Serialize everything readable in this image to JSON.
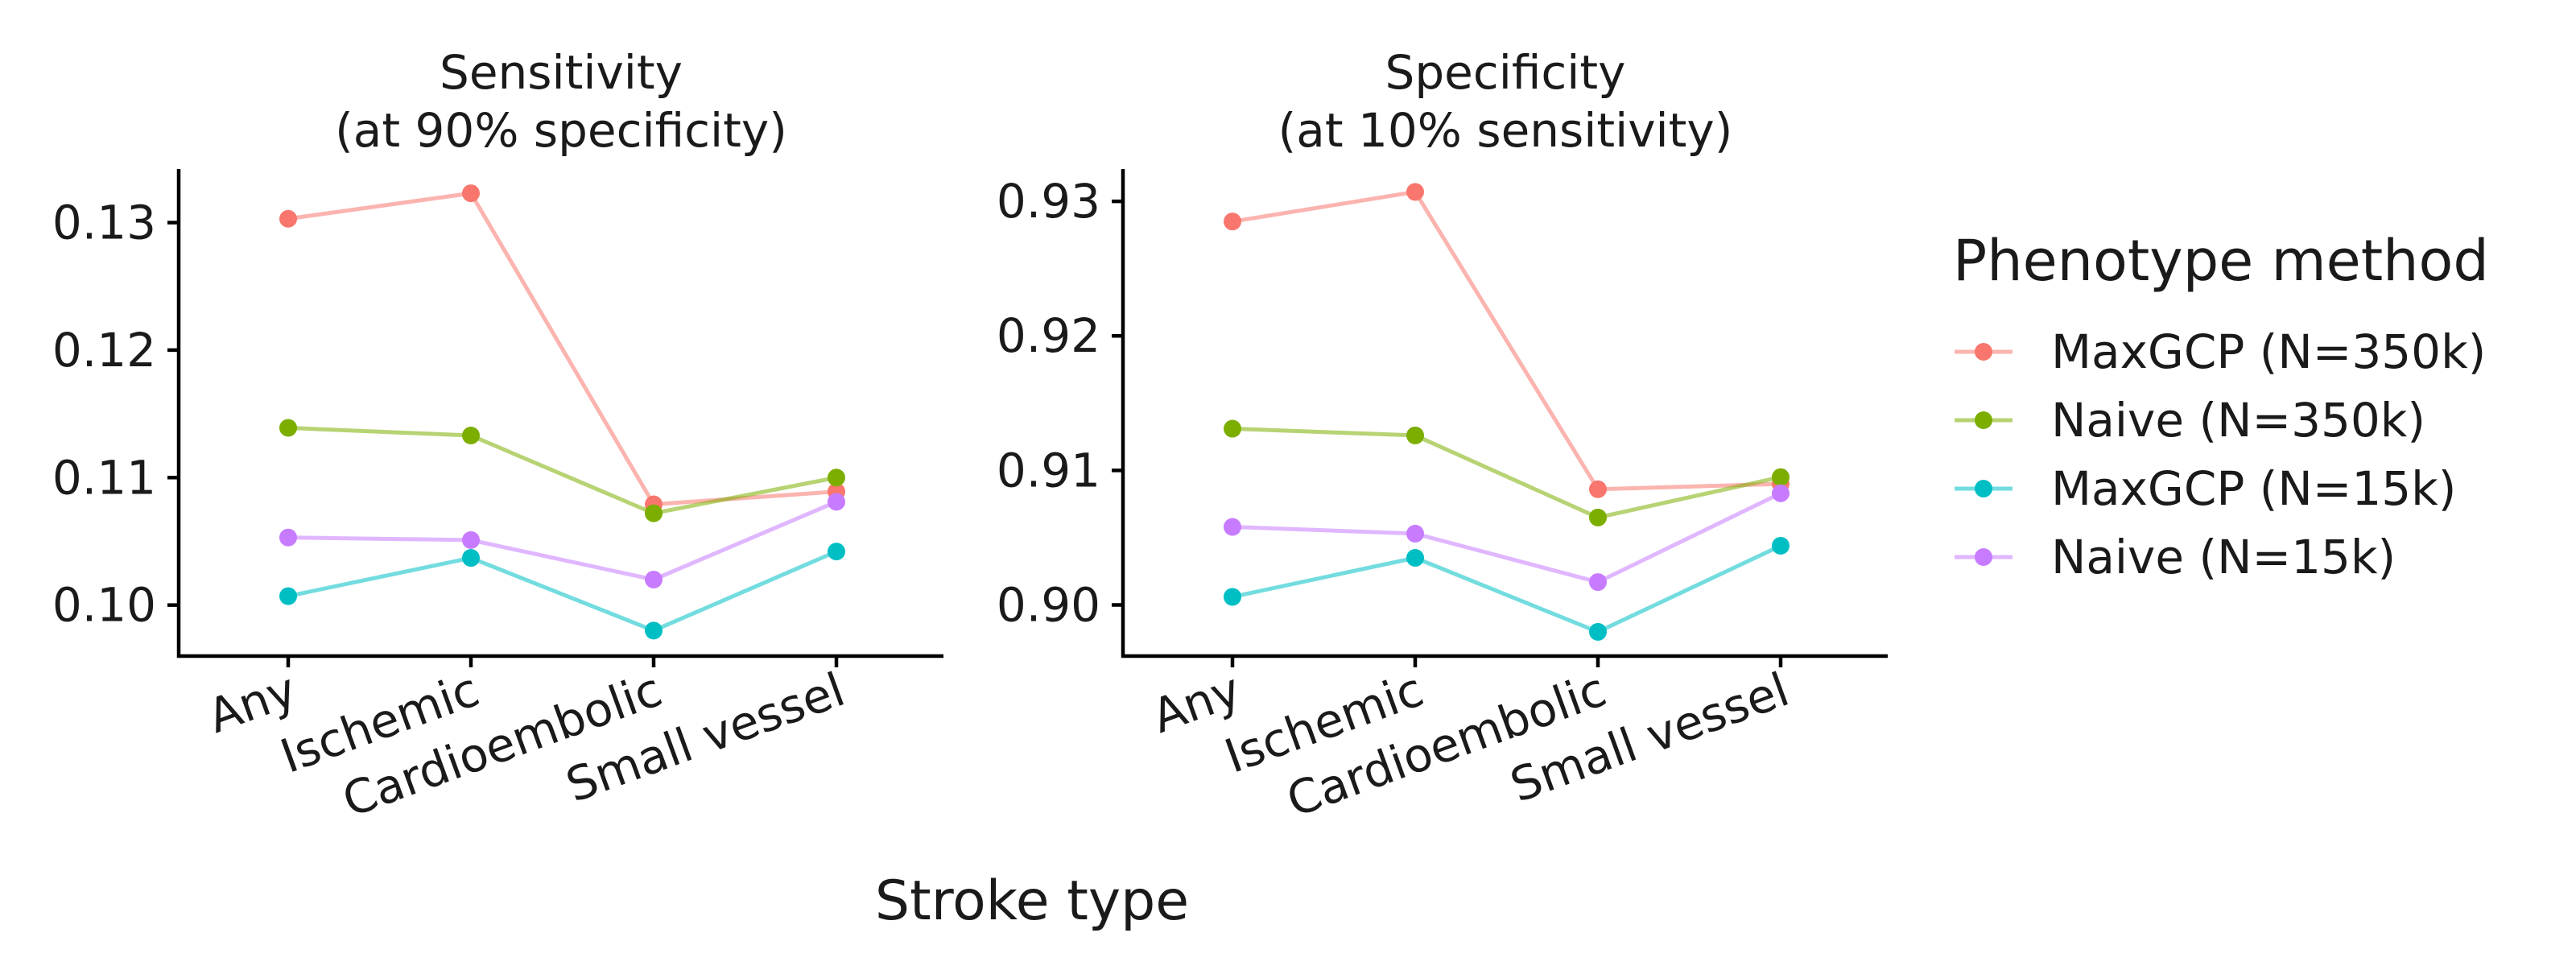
{
  "chart_data": {
    "type": "line",
    "xlabel": "Stroke type",
    "categories": [
      "Any",
      "Ischemic",
      "Cardioembolic",
      "Small vessel"
    ],
    "legend": {
      "title": "Phenotype method",
      "position": "right"
    },
    "grid": false,
    "colors": {
      "MaxGCP (N=350k)": "#F8766D",
      "Naive (N=350k)": "#7CAE00",
      "MaxGCP (N=15k)": "#00BFC4",
      "Naive (N=15k)": "#C77CFF"
    },
    "panels": [
      {
        "title_line1": "Sensitivity",
        "title_line2": "(at 90% specificity)",
        "ylim": [
          0.096,
          0.1342
        ],
        "yticks": [
          0.1,
          0.11,
          0.12,
          0.13
        ],
        "ytick_labels": [
          "0.10",
          "0.11",
          "0.12",
          "0.13"
        ],
        "series": [
          {
            "name": "MaxGCP (N=350k)",
            "values": [
              0.1303,
              0.1323,
              0.1079,
              0.1089
            ]
          },
          {
            "name": "Naive (N=350k)",
            "values": [
              0.1139,
              0.1133,
              0.1072,
              0.11
            ]
          },
          {
            "name": "MaxGCP (N=15k)",
            "values": [
              0.1007,
              0.1037,
              0.098,
              0.1042
            ]
          },
          {
            "name": "Naive (N=15k)",
            "values": [
              0.1053,
              0.1051,
              0.102,
              0.1081
            ]
          }
        ]
      },
      {
        "title_line1": "Specificity",
        "title_line2": "(at 10% sensitivity)",
        "ylim": [
          0.8962,
          0.9324
        ],
        "yticks": [
          0.9,
          0.91,
          0.92,
          0.93
        ],
        "ytick_labels": [
          "0.90",
          "0.91",
          "0.92",
          "0.93"
        ],
        "series": [
          {
            "name": "MaxGCP (N=350k)",
            "values": [
              0.9285,
              0.9307,
              0.9086,
              0.909
            ]
          },
          {
            "name": "Naive (N=350k)",
            "values": [
              0.9131,
              0.9126,
              0.9065,
              0.9095
            ]
          },
          {
            "name": "MaxGCP (N=15k)",
            "values": [
              0.9006,
              0.9035,
              0.898,
              0.9044
            ]
          },
          {
            "name": "Naive (N=15k)",
            "values": [
              0.9058,
              0.9053,
              0.9017,
              0.9083
            ]
          }
        ]
      }
    ]
  }
}
